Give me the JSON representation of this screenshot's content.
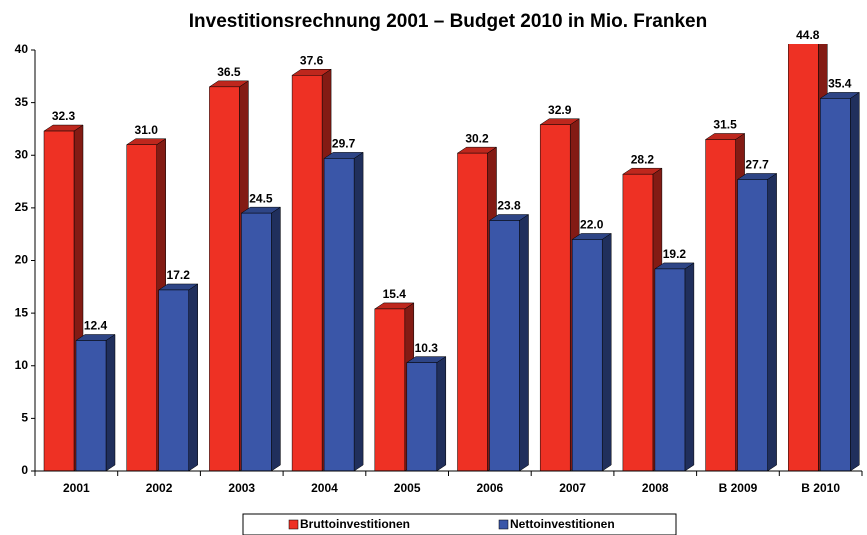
{
  "chart_data": {
    "type": "bar3d",
    "title": "Investitionsrechnung 2001 – Budget 2010 in Mio. Franken",
    "categories": [
      "2001",
      "2002",
      "2003",
      "2004",
      "2005",
      "2006",
      "2007",
      "2008",
      "B 2009",
      "B 2010"
    ],
    "series": [
      {
        "name": "Bruttoinvestitionen",
        "color": "#ee3124",
        "values": [
          32.3,
          31.0,
          36.5,
          37.6,
          15.4,
          30.2,
          32.9,
          28.2,
          31.5,
          44.8
        ],
        "value_labels": [
          "32.3",
          "31.0",
          "36.5",
          "37.6",
          "15.4",
          "30.2",
          "32.9",
          "28.2",
          "31.5",
          "44.8"
        ]
      },
      {
        "name": "Nettoinvestitionen",
        "color": "#3a56a8",
        "values": [
          12.4,
          17.2,
          24.5,
          29.7,
          10.3,
          23.8,
          22.0,
          19.2,
          27.7,
          35.4
        ],
        "value_labels": [
          "12.4",
          "17.2",
          "24.5",
          "29.7",
          "10.3",
          "23.8",
          "22.0",
          "19.2",
          "27.7",
          "35.4"
        ]
      }
    ],
    "ylim": [
      0,
      40
    ],
    "yticks": [
      0,
      5,
      10,
      15,
      20,
      25,
      30,
      35,
      40
    ],
    "legend": "bottom"
  }
}
